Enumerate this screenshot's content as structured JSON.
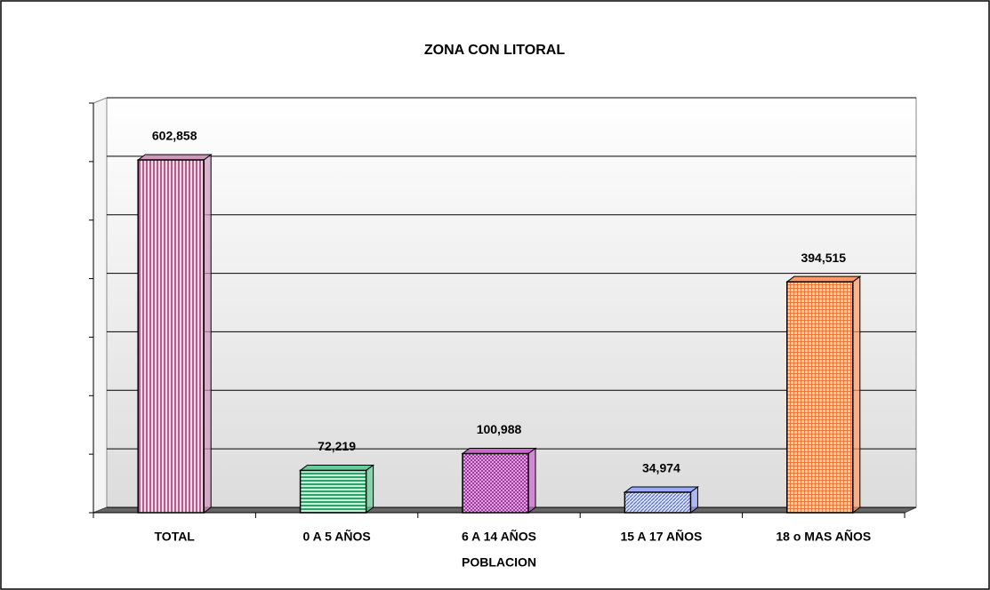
{
  "chart_data": {
    "type": "bar3d",
    "title": "ZONA CON LITORAL",
    "x_label": "POBLACION",
    "categories": [
      "TOTAL",
      "0 A 5 AÑOS",
      "6 A 14 AÑOS",
      "15 A 17 AÑOS",
      "18 o MAS AÑOS"
    ],
    "values": [
      602858,
      72219,
      100988,
      34974,
      394515
    ],
    "value_labels": [
      "602,858",
      "72,219",
      "100,988",
      "34,974",
      "394,515"
    ],
    "colors": [
      "#cc99bb",
      "#66cc99",
      "#cc66cc",
      "#99aaff",
      "#ff9966"
    ],
    "ylim": [
      0,
      700000
    ],
    "yticks": [
      0,
      100000,
      200000,
      300000,
      400000,
      500000,
      600000,
      700000
    ],
    "grid": true
  }
}
